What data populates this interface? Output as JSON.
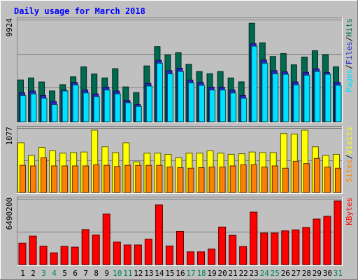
{
  "chart_data": [
    {
      "type": "bar",
      "title": "Daily usage for March 2018",
      "categories": [
        "1",
        "2",
        "3",
        "4",
        "5",
        "6",
        "7",
        "8",
        "9",
        "10",
        "11",
        "12",
        "13",
        "14",
        "15",
        "16",
        "17",
        "18",
        "19",
        "20",
        "21",
        "22",
        "23",
        "24",
        "25",
        "26",
        "27",
        "28",
        "29",
        "30",
        "31"
      ],
      "weekend_days": [
        "3",
        "4",
        "10",
        "11",
        "17",
        "18",
        "24",
        "25",
        "31"
      ],
      "y_axis_label": "9924",
      "ylim": [
        0,
        9924
      ],
      "legend": [
        "Pages",
        "/",
        "Files",
        "/",
        "Hits"
      ],
      "series": [
        {
          "name": "Hits",
          "color": "#006a50",
          "values": [
            4150,
            4350,
            3950,
            3060,
            3680,
            4460,
            5450,
            4740,
            4350,
            5270,
            3460,
            2900,
            5540,
            7450,
            6630,
            6860,
            5700,
            4980,
            4770,
            4980,
            4350,
            3960,
            9770,
            7830,
            6470,
            6760,
            5650,
            6420,
            7050,
            6660,
            5450
          ]
        },
        {
          "name": "Files",
          "color": "#2626c8",
          "values": [
            2870,
            3050,
            2610,
            2020,
            3150,
            3910,
            3150,
            2760,
            3440,
            3050,
            2100,
            1700,
            3810,
            6100,
            5070,
            5310,
            4140,
            3910,
            3440,
            3440,
            3150,
            2610,
            7750,
            6130,
            5070,
            4950,
            3950,
            4910,
            5250,
            4880,
            3910
          ]
        },
        {
          "name": "Pages",
          "color": "#00e0ff",
          "values": [
            2610,
            2770,
            2340,
            1700,
            3060,
            3660,
            2860,
            2480,
            3150,
            2770,
            1890,
            1510,
            3540,
            5810,
            4760,
            4990,
            3850,
            3620,
            3150,
            3150,
            2860,
            2340,
            7490,
            5810,
            4760,
            4710,
            3660,
            4620,
            4990,
            4710,
            3620
          ]
        }
      ]
    },
    {
      "type": "bar",
      "categories": [
        "1",
        "2",
        "3",
        "4",
        "5",
        "6",
        "7",
        "8",
        "9",
        "10",
        "11",
        "12",
        "13",
        "14",
        "15",
        "16",
        "17",
        "18",
        "19",
        "20",
        "21",
        "22",
        "23",
        "24",
        "25",
        "26",
        "27",
        "28",
        "29",
        "30",
        "31"
      ],
      "y_axis_label": "1077",
      "ylim": [
        0,
        1077
      ],
      "legend": [
        "Sites",
        "/",
        "Visits"
      ],
      "series": [
        {
          "name": "Visits",
          "color": "#ffff00",
          "values": [
            860,
            640,
            780,
            720,
            680,
            690,
            700,
            1077,
            790,
            690,
            860,
            530,
            680,
            680,
            660,
            600,
            680,
            680,
            720,
            680,
            660,
            670,
            700,
            690,
            690,
            1020,
            1010,
            1077,
            790,
            640,
            660
          ]
        },
        {
          "name": "Sites",
          "color": "#ff8000",
          "values": [
            470,
            460,
            600,
            460,
            460,
            460,
            460,
            480,
            470,
            450,
            470,
            470,
            470,
            470,
            440,
            430,
            420,
            430,
            440,
            440,
            460,
            480,
            480,
            440,
            460,
            420,
            540,
            500,
            590,
            440,
            420
          ]
        }
      ]
    },
    {
      "type": "bar",
      "categories": [
        "1",
        "2",
        "3",
        "4",
        "5",
        "6",
        "7",
        "8",
        "9",
        "10",
        "11",
        "12",
        "13",
        "14",
        "15",
        "16",
        "17",
        "18",
        "19",
        "20",
        "21",
        "22",
        "23",
        "24",
        "25",
        "26",
        "27",
        "28",
        "29",
        "30",
        "31"
      ],
      "y_axis_label": "6490200",
      "ylim": [
        0,
        6490200
      ],
      "legend": [
        "KBytes"
      ],
      "series": [
        {
          "name": "KBytes",
          "color": "#ff0000",
          "values": [
            2190000,
            2910000,
            1880000,
            1200000,
            1860000,
            1780000,
            3570000,
            3010000,
            5150000,
            2300000,
            2000000,
            2000000,
            2600000,
            6080000,
            1900000,
            3390000,
            1300000,
            1300000,
            1580000,
            3830000,
            2980000,
            1840000,
            5350000,
            3220000,
            3220000,
            3440000,
            3540000,
            3790000,
            4640000,
            4920000,
            6490200
          ]
        }
      ]
    }
  ]
}
